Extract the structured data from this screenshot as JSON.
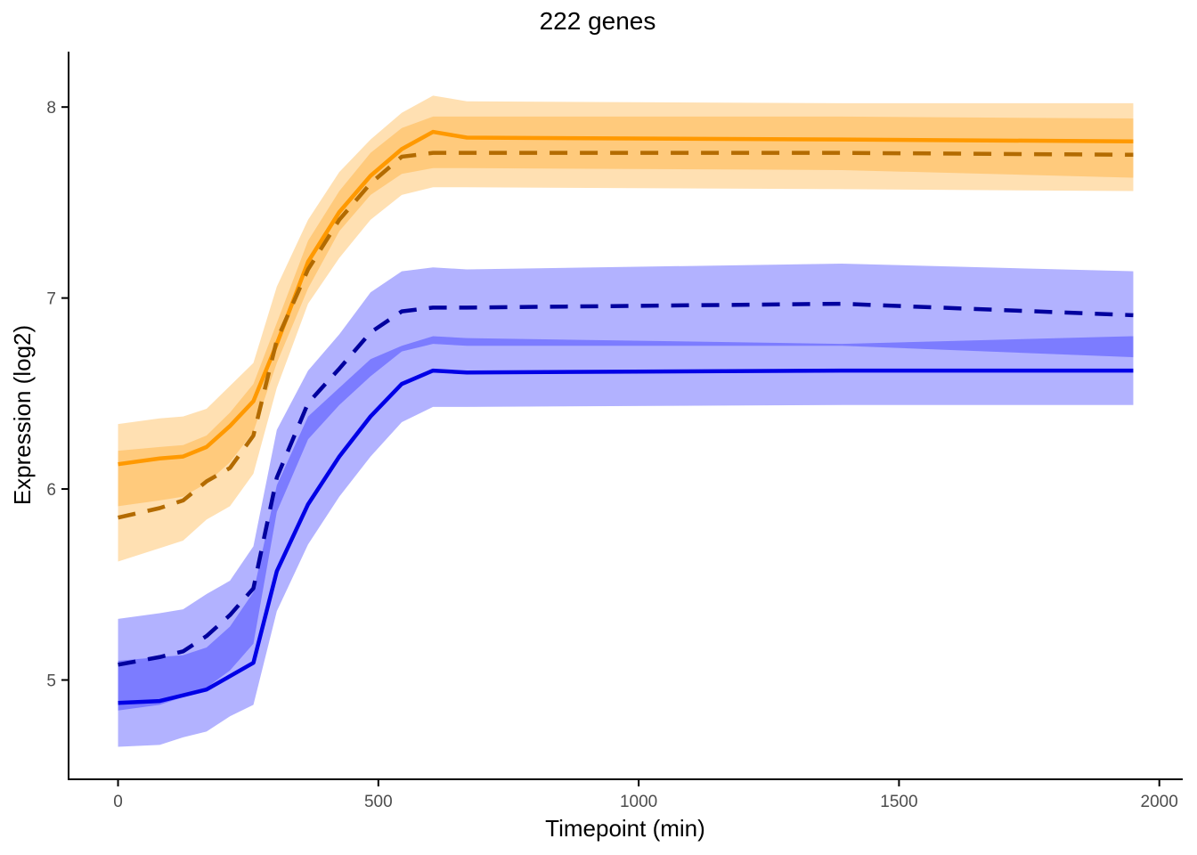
{
  "chart_data": {
    "type": "line",
    "title": "222 genes",
    "xlabel": "Timepoint (min)",
    "ylabel": "Expression (log2)",
    "xlim": [
      -95,
      2045
    ],
    "ylim": [
      4.48,
      8.29
    ],
    "xticks": [
      0,
      500,
      1000,
      1500,
      2000
    ],
    "yticks": [
      5,
      6,
      7,
      8
    ],
    "grid": false,
    "legend": "none",
    "x": [
      0,
      80,
      125,
      170,
      215,
      260,
      305,
      365,
      425,
      485,
      545,
      605,
      670,
      1390,
      1950
    ],
    "series": [
      {
        "color": "#FF9900",
        "line_color": "#FF9900",
        "dash": "solid",
        "values": [
          6.13,
          6.16,
          6.17,
          6.22,
          6.33,
          6.46,
          6.76,
          7.19,
          7.45,
          7.64,
          7.78,
          7.87,
          7.84,
          7.83,
          7.82
        ],
        "band_inner": {
          "lower": [
            5.91,
            5.94,
            5.96,
            6.03,
            6.14,
            6.3,
            6.66,
            7.05,
            7.35,
            7.54,
            7.65,
            7.68,
            7.68,
            7.67,
            7.63
          ],
          "upper": [
            6.2,
            6.22,
            6.23,
            6.28,
            6.4,
            6.55,
            6.87,
            7.3,
            7.56,
            7.76,
            7.89,
            7.95,
            7.95,
            7.95,
            7.94
          ]
        },
        "band_outer": {
          "lower": [
            5.62,
            5.69,
            5.73,
            5.84,
            5.91,
            6.08,
            6.53,
            6.97,
            7.21,
            7.41,
            7.54,
            7.58,
            7.58,
            7.57,
            7.56
          ],
          "upper": [
            6.34,
            6.37,
            6.38,
            6.42,
            6.54,
            6.66,
            7.06,
            7.41,
            7.66,
            7.83,
            7.97,
            8.06,
            8.03,
            8.02,
            8.02
          ]
        }
      },
      {
        "color": "#FF9900",
        "line_color": "#B36B00",
        "dash": "dashed",
        "values": [
          5.85,
          5.9,
          5.94,
          6.04,
          6.11,
          6.28,
          6.78,
          7.15,
          7.41,
          7.6,
          7.74,
          7.76,
          7.76,
          7.76,
          7.75
        ]
      },
      {
        "color": "#0000FF",
        "line_color": "#0000E6",
        "dash": "solid",
        "values": [
          4.88,
          4.89,
          4.92,
          4.95,
          5.02,
          5.09,
          5.57,
          5.92,
          6.17,
          6.38,
          6.55,
          6.62,
          6.61,
          6.62,
          6.62
        ],
        "band_inner": {
          "lower": [
            4.84,
            4.87,
            4.91,
            4.96,
            5.05,
            5.19,
            5.88,
            6.26,
            6.44,
            6.59,
            6.72,
            6.76,
            6.75,
            6.75,
            6.69
          ],
          "upper": [
            5.1,
            5.12,
            5.13,
            5.17,
            5.28,
            5.46,
            6.02,
            6.38,
            6.53,
            6.68,
            6.75,
            6.8,
            6.79,
            6.76,
            6.8
          ]
        },
        "band_outer": {
          "lower": [
            4.65,
            4.66,
            4.7,
            4.73,
            4.81,
            4.87,
            5.36,
            5.71,
            5.96,
            6.17,
            6.35,
            6.43,
            6.43,
            6.44,
            6.44
          ],
          "upper": [
            5.32,
            5.35,
            5.37,
            5.45,
            5.52,
            5.7,
            6.31,
            6.62,
            6.81,
            7.03,
            7.14,
            7.16,
            7.15,
            7.18,
            7.14
          ]
        }
      },
      {
        "color": "#0000FF",
        "line_color": "#00009E",
        "dash": "dashed",
        "values": [
          5.08,
          5.12,
          5.15,
          5.23,
          5.34,
          5.48,
          6.06,
          6.45,
          6.63,
          6.82,
          6.93,
          6.95,
          6.95,
          6.97,
          6.91
        ]
      }
    ]
  }
}
